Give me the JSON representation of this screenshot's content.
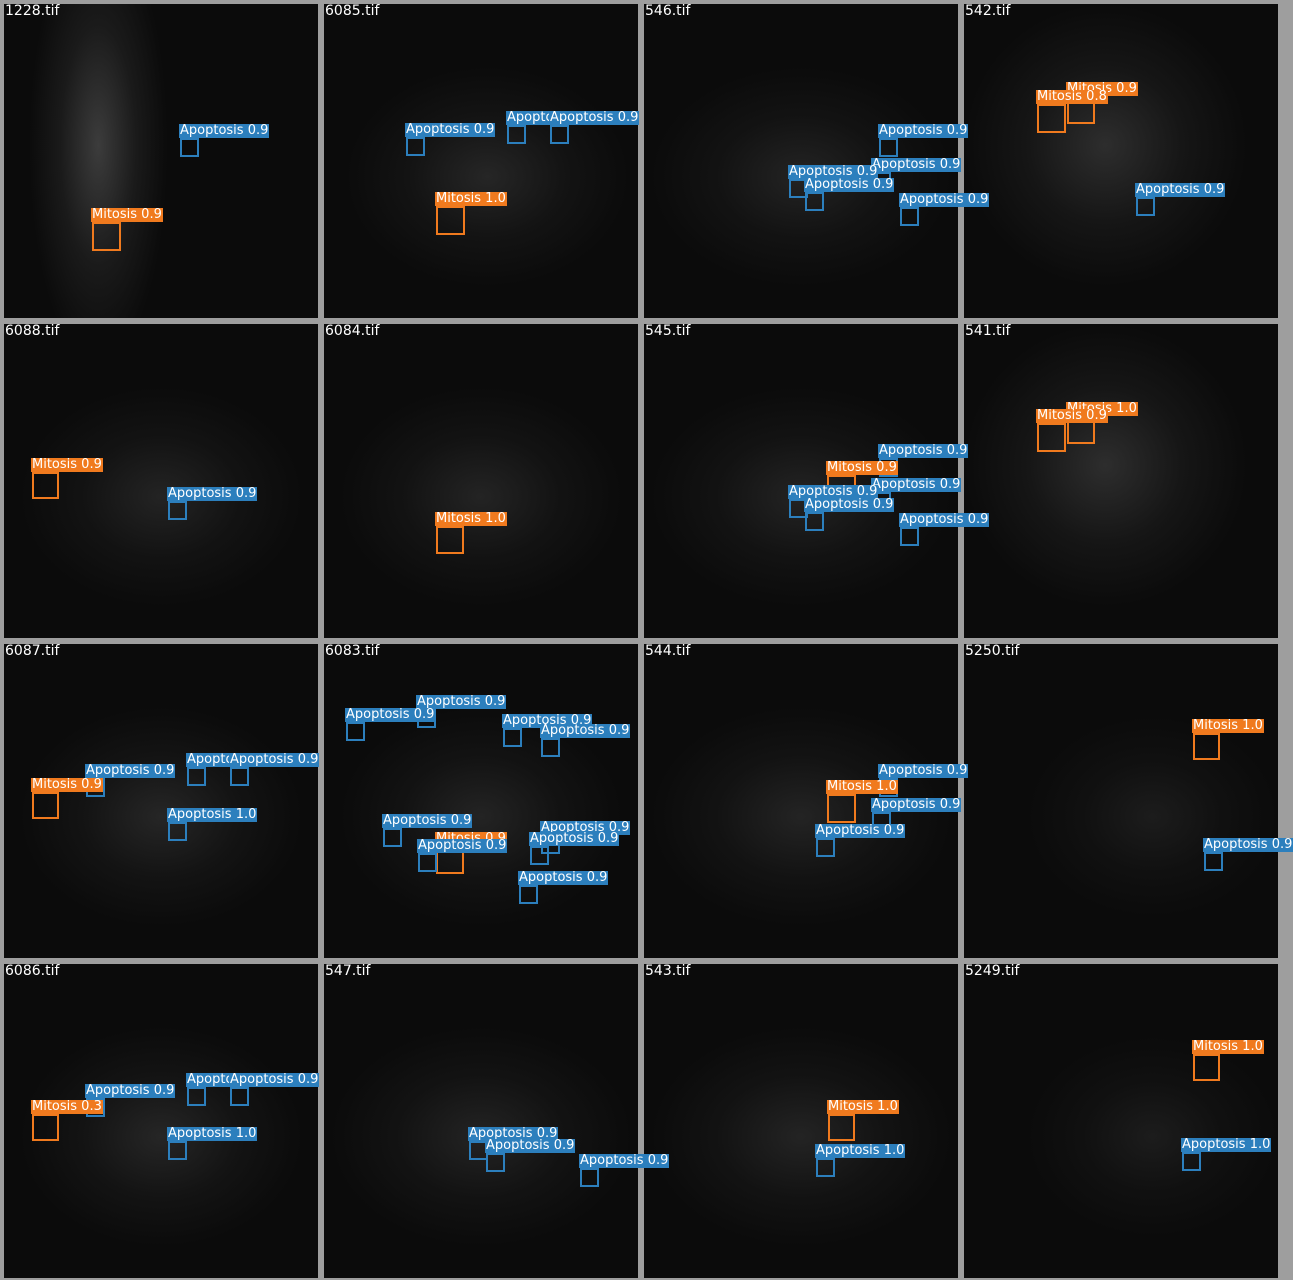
{
  "colors": {
    "Mitosis": "#f07a1e",
    "Apoptosis": "#2c7fbd"
  },
  "tiles": [
    {
      "file": "1228.tif",
      "detections": [
        {
          "cls": "Apoptosis",
          "score": "0.9"
        },
        {
          "cls": "Mitosis",
          "score": "0.9"
        }
      ]
    },
    {
      "file": "6085.tif",
      "detections": [
        {
          "cls": "Apoptosis",
          "score": "0.9"
        },
        {
          "cls": "Apoptosis",
          "score": "0.9"
        },
        {
          "cls": "Apoptosis",
          "score": "0.9"
        },
        {
          "cls": "Mitosis",
          "score": "1.0"
        }
      ]
    },
    {
      "file": "546.tif",
      "detections": [
        {
          "cls": "Apoptosis",
          "score": "0.9"
        },
        {
          "cls": "Apoptosis",
          "score": "0.9"
        },
        {
          "cls": "Apoptosis",
          "score": "0.9"
        },
        {
          "cls": "Apoptosis",
          "score": "0.9"
        },
        {
          "cls": "Apoptosis",
          "score": "0.9"
        }
      ]
    },
    {
      "file": "542.tif",
      "detections": [
        {
          "cls": "Mitosis",
          "score": "0.9"
        },
        {
          "cls": "Mitosis",
          "score": "0.8"
        },
        {
          "cls": "Apoptosis",
          "score": "0.9"
        }
      ]
    },
    {
      "file": "6088.tif",
      "detections": [
        {
          "cls": "Mitosis",
          "score": "0.9"
        },
        {
          "cls": "Apoptosis",
          "score": "0.9"
        }
      ]
    },
    {
      "file": "6084.tif",
      "detections": [
        {
          "cls": "Mitosis",
          "score": "1.0"
        }
      ]
    },
    {
      "file": "545.tif",
      "detections": [
        {
          "cls": "Apoptosis",
          "score": "0.9"
        },
        {
          "cls": "Mitosis",
          "score": "0.9"
        },
        {
          "cls": "Apoptosis",
          "score": "0.9"
        },
        {
          "cls": "Apoptosis",
          "score": "0.9"
        },
        {
          "cls": "Apoptosis",
          "score": "0.9"
        },
        {
          "cls": "Apoptosis",
          "score": "0.9"
        }
      ]
    },
    {
      "file": "541.tif",
      "detections": [
        {
          "cls": "Mitosis",
          "score": "1.0"
        },
        {
          "cls": "Mitosis",
          "score": "0.9"
        }
      ]
    },
    {
      "file": "6087.tif",
      "detections": [
        {
          "cls": "Apoptosis",
          "score": "0.9"
        },
        {
          "cls": "Apoptosis",
          "score": "0.9"
        },
        {
          "cls": "Apoptosis",
          "score": "0.9"
        },
        {
          "cls": "Mitosis",
          "score": "0.9"
        },
        {
          "cls": "Apoptosis",
          "score": "1.0"
        }
      ]
    },
    {
      "file": "6083.tif",
      "detections": [
        {
          "cls": "Apoptosis",
          "score": "0.9"
        },
        {
          "cls": "Apoptosis",
          "score": "0.9"
        },
        {
          "cls": "Apoptosis",
          "score": "0.9"
        },
        {
          "cls": "Apoptosis",
          "score": "0.9"
        },
        {
          "cls": "Apoptosis",
          "score": "0.9"
        },
        {
          "cls": "Mitosis",
          "score": "0.9"
        },
        {
          "cls": "Apoptosis",
          "score": "0.9"
        },
        {
          "cls": "Apoptosis",
          "score": "0.9"
        },
        {
          "cls": "Apoptosis",
          "score": "0.9"
        },
        {
          "cls": "Apoptosis",
          "score": "0.9"
        }
      ]
    },
    {
      "file": "544.tif",
      "detections": [
        {
          "cls": "Apoptosis",
          "score": "0.9"
        },
        {
          "cls": "Mitosis",
          "score": "1.0"
        },
        {
          "cls": "Apoptosis",
          "score": "0.9"
        },
        {
          "cls": "Apoptosis",
          "score": "0.9"
        }
      ]
    },
    {
      "file": "5250.tif",
      "detections": [
        {
          "cls": "Mitosis",
          "score": "1.0"
        },
        {
          "cls": "Apoptosis",
          "score": "0.9"
        }
      ]
    },
    {
      "file": "6086.tif",
      "detections": [
        {
          "cls": "Apoptosis",
          "score": "0.9"
        },
        {
          "cls": "Apoptosis",
          "score": "0.9"
        },
        {
          "cls": "Apoptosis",
          "score": "0.9"
        },
        {
          "cls": "Mitosis",
          "score": "0.3"
        },
        {
          "cls": "Apoptosis",
          "score": "1.0"
        }
      ]
    },
    {
      "file": "547.tif",
      "detections": [
        {
          "cls": "Apoptosis",
          "score": "0.9"
        },
        {
          "cls": "Apoptosis",
          "score": "0.9"
        },
        {
          "cls": "Apoptosis",
          "score": "0.9"
        }
      ]
    },
    {
      "file": "543.tif",
      "detections": [
        {
          "cls": "Mitosis",
          "score": "1.0"
        },
        {
          "cls": "Apoptosis",
          "score": "1.0"
        }
      ]
    },
    {
      "file": "5249.tif",
      "detections": [
        {
          "cls": "Mitosis",
          "score": "1.0"
        },
        {
          "cls": "Apoptosis",
          "score": "1.0"
        }
      ]
    }
  ]
}
